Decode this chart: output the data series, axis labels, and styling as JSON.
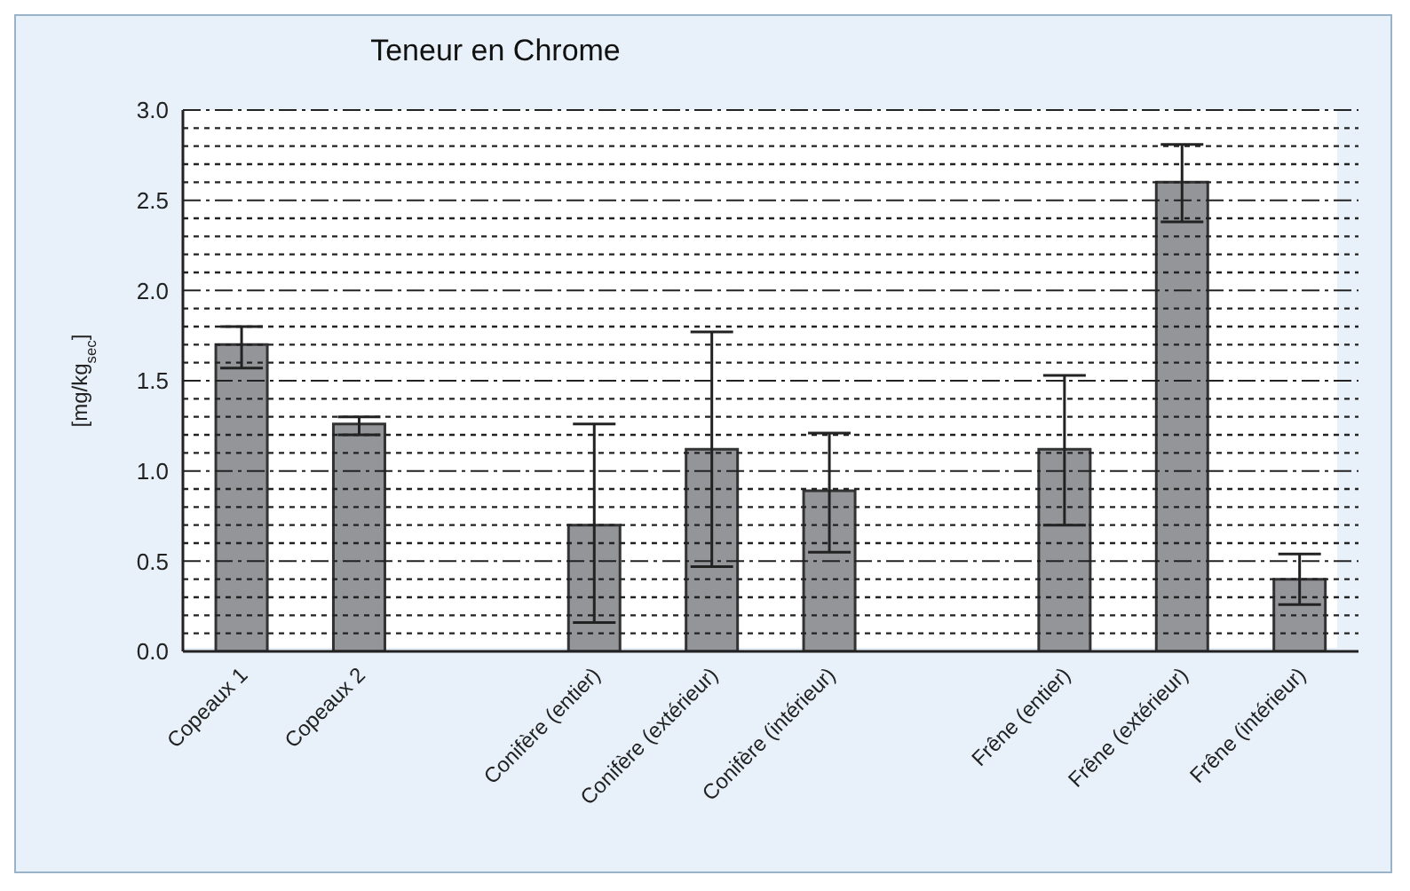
{
  "chart_data": {
    "type": "bar",
    "title": "Teneur en Chrome",
    "ylabel": "[mg/kg$_{sec}$]",
    "categories": [
      "Copeaux 1",
      "Copeaux 2",
      null,
      "Conifère (entier)",
      "Conifère (extérieur)",
      "Conifère (intérieur)",
      null,
      "Frêne (entier)",
      "Frêne (extérieur)",
      "Frêne (intérieur)"
    ],
    "values": [
      1.7,
      1.26,
      null,
      0.7,
      1.12,
      0.89,
      null,
      1.12,
      2.6,
      0.4
    ],
    "errors": [
      [
        1.57,
        1.8
      ],
      [
        1.2,
        1.3
      ],
      null,
      [
        0.16,
        1.26
      ],
      [
        0.47,
        1.77
      ],
      [
        0.55,
        1.21
      ],
      null,
      [
        0.7,
        1.53
      ],
      [
        2.38,
        2.81
      ],
      [
        0.26,
        0.54
      ]
    ],
    "color": "#939598",
    "ylim": [
      0,
      3
    ],
    "yticks": [
      "0.0",
      {
        "value": 0.1,
        "label": null
      },
      {
        "value": 0.2,
        "label": null
      },
      {
        "value": 0.3,
        "label": null
      },
      {
        "value": 0.4,
        "label": null
      },
      {
        "value": 0.5,
        "label": "0.5"
      },
      {
        "value": 0.6,
        "label": null
      },
      {
        "value": 0.7,
        "label": null
      },
      {
        "value": 0.8,
        "label": null
      },
      {
        "value": 0.9,
        "label": null
      },
      {
        "value": 1,
        "label": "1.0"
      },
      {
        "value": 1.1,
        "label": null
      },
      {
        "value": 1.2,
        "label": null
      },
      {
        "value": 1.3,
        "label": null
      },
      {
        "value": 1.4,
        "label": null
      },
      {
        "value": 1.5,
        "label": "1.5"
      },
      {
        "value": 1.6,
        "label": null
      },
      {
        "value": 1.7,
        "label": null
      },
      {
        "value": 1.8,
        "label": null
      },
      {
        "value": 1.9,
        "label": null
      },
      {
        "value": 2,
        "label": "2.0"
      },
      {
        "value": 2.1,
        "label": null
      },
      {
        "value": 2.2,
        "label": null
      },
      {
        "value": 2.3,
        "label": null
      },
      {
        "value": 2.4,
        "label": null
      },
      {
        "value": 2.5,
        "label": "2.5"
      },
      {
        "value": 2.6,
        "label": null
      },
      {
        "value": 2.7,
        "label": null
      },
      {
        "value": 2.8,
        "label": null
      },
      {
        "value": 2.9,
        "label": null
      },
      {
        "value": 3,
        "label": "3.0"
      }
    ],
    "grid": "y",
    "legend": false
  }
}
